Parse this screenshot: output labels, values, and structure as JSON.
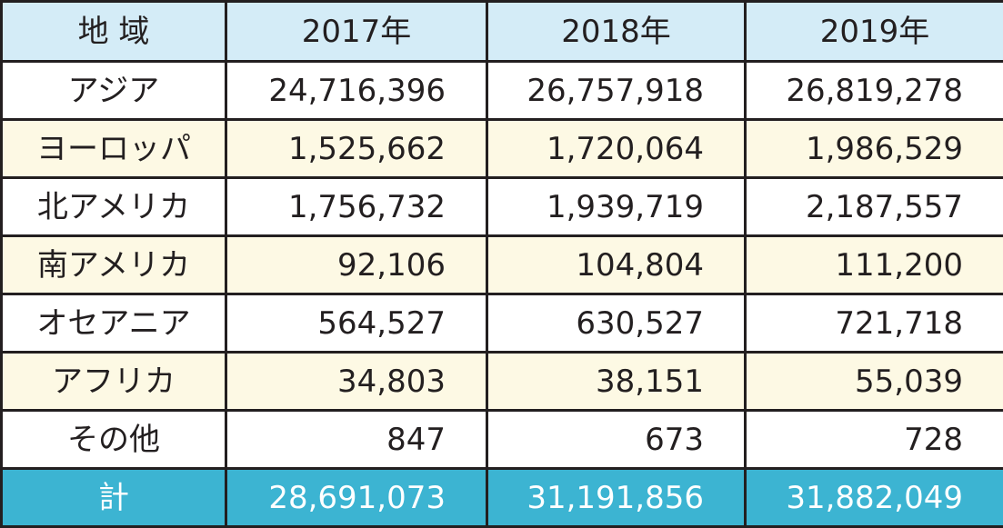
{
  "colors": {
    "header_bg": "#d4ecf7",
    "alt_row_bg": "#fdf9e4",
    "plain_row_bg": "#ffffff",
    "total_row_bg": "#3cb4d2",
    "total_text": "#ffffff",
    "border": "#231f20"
  },
  "chart_data": {
    "type": "table",
    "columns": [
      "地 域",
      "2017年",
      "2018年",
      "2019年"
    ],
    "rows": [
      {
        "region": "アジア",
        "values": [
          "24,716,396",
          "26,757,918",
          "26,819,278"
        ]
      },
      {
        "region": "ヨーロッパ",
        "values": [
          "1,525,662",
          "1,720,064",
          "1,986,529"
        ]
      },
      {
        "region": "北アメリカ",
        "values": [
          "1,756,732",
          "1,939,719",
          "2,187,557"
        ]
      },
      {
        "region": "南アメリカ",
        "values": [
          "92,106",
          "104,804",
          "111,200"
        ]
      },
      {
        "region": "オセアニア",
        "values": [
          "564,527",
          "630,527",
          "721,718"
        ]
      },
      {
        "region": "アフリカ",
        "values": [
          "34,803",
          "38,151",
          "55,039"
        ]
      },
      {
        "region": "その他",
        "values": [
          "847",
          "673",
          "728"
        ]
      }
    ],
    "total": {
      "label": "計",
      "values": [
        "28,691,073",
        "31,191,856",
        "31,882,049"
      ]
    }
  }
}
